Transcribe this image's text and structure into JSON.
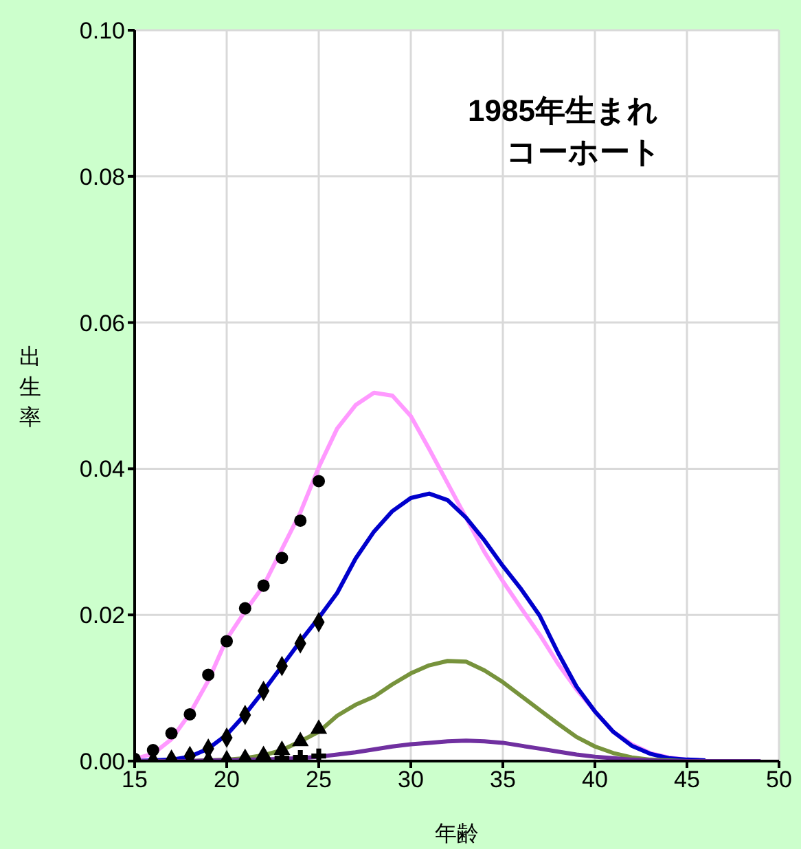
{
  "chart_data": {
    "type": "line",
    "title": "1985年生まれ",
    "subtitle": "コーホート",
    "xlabel": "年齢",
    "ylabel": "出生率",
    "x": [
      15,
      16,
      17,
      18,
      19,
      20,
      21,
      22,
      23,
      24,
      25,
      26,
      27,
      28,
      29,
      30,
      31,
      32,
      33,
      34,
      35,
      36,
      37,
      38,
      39,
      40,
      41,
      42,
      43,
      44,
      45,
      46,
      47,
      48,
      49
    ],
    "series": [
      {
        "type": "line",
        "color": "#ff99ff",
        "values": [
          0.0003,
          0.001,
          0.003,
          0.0065,
          0.011,
          0.0167,
          0.0205,
          0.024,
          0.029,
          0.034,
          0.0402,
          0.0455,
          0.0487,
          0.0504,
          0.05,
          0.0472,
          0.0427,
          0.038,
          0.0333,
          0.0286,
          0.0246,
          0.0209,
          0.0173,
          0.0133,
          0.0098,
          0.0068,
          0.004,
          0.0023,
          0.0011,
          0.0005,
          0.0002,
          0.0001,
          null,
          null,
          null
        ]
      },
      {
        "type": "line",
        "color": "#0000cc",
        "values": [
          0,
          0.0001,
          0.0002,
          0.0006,
          0.0017,
          0.0036,
          0.0064,
          0.0096,
          0.013,
          0.0164,
          0.0196,
          0.023,
          0.0277,
          0.0314,
          0.0342,
          0.036,
          0.0366,
          0.0357,
          0.0333,
          0.0302,
          0.0267,
          0.0235,
          0.0199,
          0.0148,
          0.0102,
          0.0068,
          0.004,
          0.0021,
          0.001,
          0.0004,
          0.0002,
          0.0001,
          null,
          null,
          null
        ]
      },
      {
        "type": "line",
        "color": "#77933c",
        "values": [
          null,
          null,
          0,
          0,
          0.0001,
          0.0002,
          0.0004,
          0.0008,
          0.0015,
          0.0027,
          0.004,
          0.0062,
          0.0077,
          0.0088,
          0.0105,
          0.012,
          0.0131,
          0.0137,
          0.0136,
          0.0124,
          0.0108,
          0.0089,
          0.007,
          0.0051,
          0.0033,
          0.002,
          0.0011,
          0.0005,
          0.0002,
          0.0001,
          0,
          0,
          null,
          null,
          null
        ]
      },
      {
        "type": "line",
        "color": "#7030a0",
        "values": [
          0,
          0,
          0,
          0,
          0.0001,
          0.0001,
          0.0002,
          0.0002,
          0.0003,
          0.0004,
          0.0006,
          0.0009,
          0.0012,
          0.0016,
          0.002,
          0.0023,
          0.0025,
          0.0027,
          0.0028,
          0.0027,
          0.0025,
          0.0021,
          0.0017,
          0.0013,
          0.0009,
          0.0006,
          0.0004,
          0.0002,
          0.0001,
          0,
          0,
          0,
          0,
          0,
          0
        ]
      },
      {
        "type": "scatter",
        "marker": "cross",
        "color": "#000000",
        "x": [
          23,
          24,
          25
        ],
        "values": [
          0.0004,
          0.0005,
          0.0007
        ]
      },
      {
        "type": "scatter",
        "marker": "triangle",
        "color": "#000000",
        "x": [
          19,
          20,
          21,
          22,
          23,
          24,
          25
        ],
        "values": [
          0.0001,
          0.0002,
          0.0004,
          0.0008,
          0.0015,
          0.0027,
          0.0044
        ]
      },
      {
        "type": "scatter",
        "marker": "diamond",
        "color": "#000000",
        "x": [
          16,
          17,
          18,
          19,
          20,
          21,
          22,
          23,
          24,
          25
        ],
        "values": [
          0,
          0.0002,
          0.0007,
          0.0017,
          0.0032,
          0.0063,
          0.0096,
          0.013,
          0.0161,
          0.019
        ]
      },
      {
        "type": "scatter",
        "marker": "circle",
        "color": "#000000",
        "x": [
          15,
          16,
          17,
          18,
          19,
          20,
          21,
          22,
          23,
          24,
          25
        ],
        "values": [
          0.0003,
          0.0015,
          0.0038,
          0.0064,
          0.0118,
          0.0164,
          0.0209,
          0.024,
          0.0278,
          0.0329,
          0.0383
        ]
      }
    ],
    "marker": "none",
    "line_style": "solid",
    "xlim": [
      15,
      50
    ],
    "xticks": [
      15,
      20,
      25,
      30,
      35,
      40,
      45,
      50
    ],
    "ylim": [
      0,
      0.1
    ],
    "yticks": [
      {
        "value": 0,
        "label": "0.00"
      },
      {
        "value": 0.02,
        "label": "0.02"
      },
      {
        "value": 0.04,
        "label": "0.04"
      },
      {
        "value": 0.06,
        "label": "0.06"
      },
      {
        "value": 0.08,
        "label": "0.08"
      },
      {
        "value": 0.1,
        "label": "0.10"
      }
    ],
    "grid": true
  }
}
